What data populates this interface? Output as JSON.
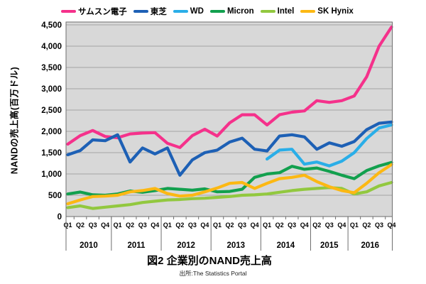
{
  "chart_data": {
    "type": "line",
    "title": "図2  企業別のNAND売上高",
    "source": "出所:The Statistics  Portal",
    "units": "百万ドル (million USD)",
    "plot_background": "#D8D8D8",
    "grid": true,
    "gridline_color": "#A3A3A3",
    "border_color": "#6E6E6E",
    "legend_position": "top",
    "y_axis": {
      "title": "NANDの売上高(百万ドル)",
      "min": 0,
      "max": 4500,
      "tick_step": 500,
      "tick_labels": [
        "0",
        "500",
        "1,000",
        "1,500",
        "2,000",
        "2,500",
        "3,000",
        "3,500",
        "4,000",
        "4,500"
      ]
    },
    "x_axis": {
      "quarter_labels": [
        "Q1",
        "Q2",
        "Q3",
        "Q4",
        "Q1",
        "Q2",
        "Q3",
        "Q4",
        "Q1",
        "Q2",
        "Q3",
        "Q4",
        "Q1",
        "Q2",
        "Q3",
        "Q4",
        "Q1",
        "Q2",
        "Q3",
        "Q4",
        "Q2",
        "Q3",
        "Q4",
        "Q1",
        "Q2",
        "Q3",
        "Q4"
      ],
      "year_groups": [
        {
          "label": "2010",
          "quarters": 4
        },
        {
          "label": "2011",
          "quarters": 4
        },
        {
          "label": "2012",
          "quarters": 4
        },
        {
          "label": "2013",
          "quarters": 4
        },
        {
          "label": "2014",
          "quarters": 4
        },
        {
          "label": "2015",
          "quarters": 3
        },
        {
          "label": "2016",
          "quarters": 4
        }
      ]
    },
    "series": [
      {
        "key": "samsung",
        "name": "サムスン電子",
        "color": "#F5318B",
        "values": [
          1700,
          1900,
          2020,
          1880,
          1850,
          1940,
          1960,
          1970,
          1720,
          1620,
          1900,
          2050,
          1890,
          2200,
          2390,
          2390,
          2150,
          2390,
          2450,
          2480,
          2720,
          2680,
          2720,
          2830,
          3280,
          4000,
          4450
        ]
      },
      {
        "key": "toshiba",
        "name": "東芝",
        "color": "#1D60B5",
        "values": [
          1450,
          1550,
          1800,
          1780,
          1920,
          1280,
          1610,
          1470,
          1610,
          970,
          1330,
          1500,
          1560,
          1750,
          1840,
          1580,
          1540,
          1890,
          1920,
          1870,
          1580,
          1730,
          1650,
          1760,
          2040,
          2190,
          2220
        ]
      },
      {
        "key": "wd",
        "name": "WD",
        "color": "#2AAEE8",
        "values": [
          null,
          null,
          null,
          null,
          null,
          null,
          null,
          null,
          null,
          null,
          null,
          null,
          null,
          null,
          null,
          null,
          1350,
          1560,
          1580,
          1230,
          1280,
          1190,
          1300,
          1500,
          1830,
          2080,
          2150
        ]
      },
      {
        "key": "micron",
        "name": "Micron",
        "color": "#12A04E",
        "values": [
          530,
          575,
          510,
          500,
          530,
          600,
          570,
          610,
          660,
          640,
          620,
          650,
          580,
          590,
          640,
          920,
          1000,
          1030,
          1180,
          1110,
          1140,
          1060,
          970,
          890,
          1080,
          1190,
          1270
        ]
      },
      {
        "key": "intel",
        "name": "Intel",
        "color": "#92C83F",
        "values": [
          210,
          250,
          190,
          220,
          250,
          280,
          330,
          360,
          390,
          400,
          420,
          430,
          450,
          470,
          500,
          510,
          530,
          570,
          610,
          640,
          660,
          680,
          660,
          530,
          580,
          720,
          800
        ]
      },
      {
        "key": "skhynix",
        "name": "SK Hynix",
        "color": "#FCB813",
        "values": [
          300,
          390,
          470,
          480,
          500,
          580,
          610,
          660,
          540,
          480,
          500,
          580,
          670,
          780,
          800,
          660,
          780,
          890,
          920,
          970,
          820,
          700,
          610,
          560,
          780,
          1030,
          1220
        ]
      }
    ]
  }
}
